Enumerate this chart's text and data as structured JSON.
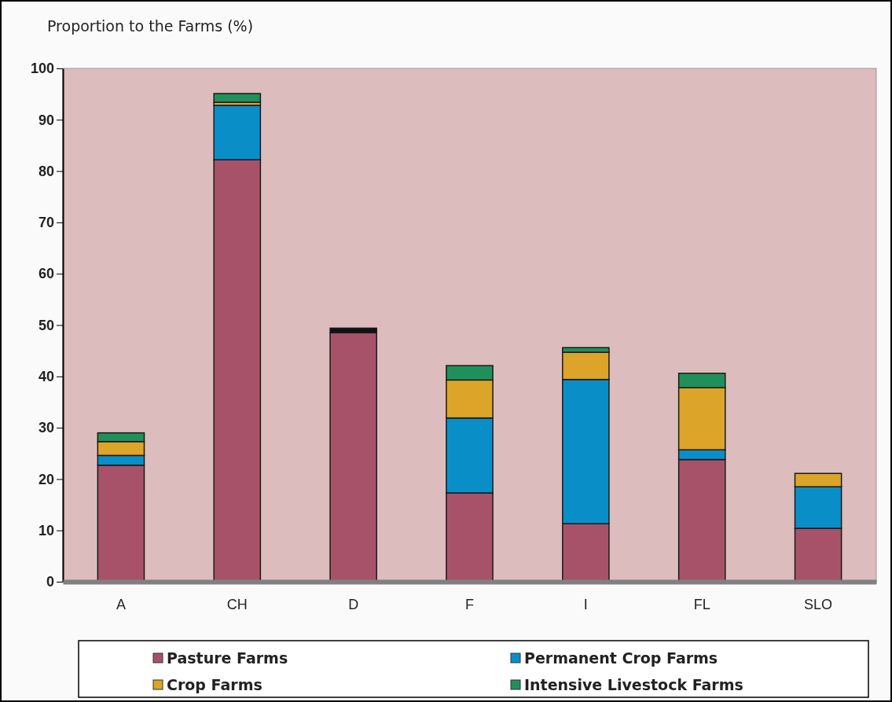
{
  "chart_data": {
    "type": "bar",
    "title": "Proportion to the Farms (%)",
    "stacked": true,
    "categories": [
      "A",
      "CH",
      "D",
      "F",
      "I",
      "FL",
      "SLO"
    ],
    "series": [
      {
        "name": "Pasture Farms",
        "color": "#a8526a",
        "values": [
          22.7,
          82.2,
          48.5,
          17.3,
          11.3,
          23.8,
          10.4
        ]
      },
      {
        "name": "Permanent Crop Farms",
        "color": "#0a8ec8",
        "values": [
          1.9,
          10.6,
          0,
          14.6,
          28.1,
          1.9,
          8.1
        ]
      },
      {
        "name": "Crop Farms",
        "color": "#dca428",
        "values": [
          2.7,
          0.6,
          0,
          7.4,
          5.3,
          12.1,
          2.6
        ]
      },
      {
        "name": "Intensive Livestock Farms",
        "color": "#20905a",
        "colors": [
          "#20905a",
          "#20905a",
          "#111111",
          "#20905a",
          "#20905a",
          "#20905a",
          "#20905a"
        ],
        "values": [
          1.7,
          1.7,
          0.9,
          2.8,
          0.9,
          2.8,
          0
        ]
      }
    ],
    "ylim": [
      0,
      100
    ],
    "yticks": [
      0,
      10,
      20,
      30,
      40,
      50,
      60,
      70,
      80,
      90,
      100
    ],
    "grid": false,
    "legend": "bottom"
  }
}
